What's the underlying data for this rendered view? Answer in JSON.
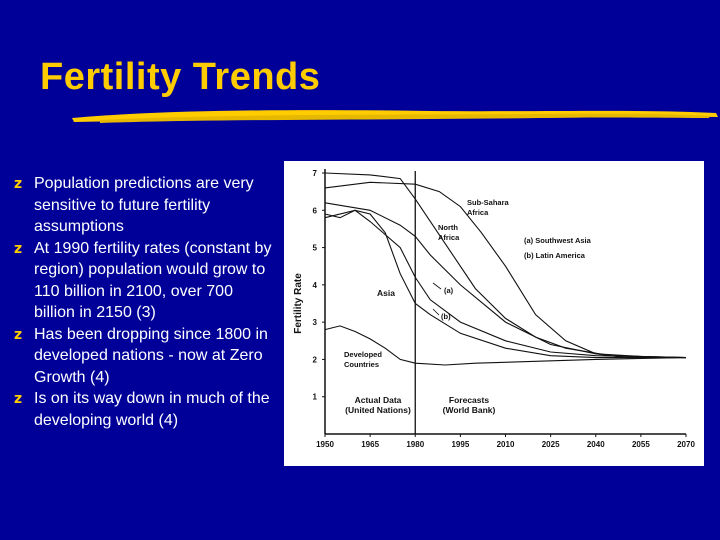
{
  "slide": {
    "title": "Fertility Trends",
    "bullets": [
      "Population predictions are very sensitive to future fertility assumptions",
      "At 1990 fertility rates (constant  by region) population would grow to 110 billion in 2100, over 700 billion in 2150 (3)",
      "Has been dropping since 1800 in developed nations - now at Zero Growth (4)",
      "Is on its way down in much of the developing world (4)"
    ],
    "bullet_icon": "z-bullet-icon",
    "colors": {
      "background": "#000099",
      "title": "#ffcc00",
      "text": "#ffffff",
      "underline": "#ffcc00"
    }
  },
  "chart_data": {
    "type": "line",
    "ylabel": "Fertility Rate",
    "xlabel": "",
    "xlim": [
      1950,
      2070
    ],
    "ylim": [
      0,
      7
    ],
    "x_ticks": [
      "1950",
      "1965",
      "1980",
      "1995",
      "2010",
      "2025",
      "2040",
      "2055",
      "2070"
    ],
    "y_ticks": [
      "1",
      "2",
      "3",
      "4",
      "5",
      "6",
      "7"
    ],
    "divider_year": 1980,
    "series": [
      {
        "name": "Sub-Sahara Africa",
        "x": [
          1950,
          1965,
          1980,
          1988,
          1995,
          2002,
          2010,
          2020,
          2030,
          2040,
          2050,
          2070
        ],
        "y": [
          6.6,
          6.75,
          6.7,
          6.5,
          6.1,
          5.4,
          4.5,
          3.2,
          2.5,
          2.15,
          2.05,
          2.05
        ]
      },
      {
        "name": "North Africa",
        "x": [
          1950,
          1965,
          1975,
          1980,
          1990,
          2000,
          2010,
          2020,
          2030,
          2045,
          2070
        ],
        "y": [
          7.0,
          6.95,
          6.85,
          6.3,
          5.1,
          3.9,
          3.1,
          2.6,
          2.3,
          2.1,
          2.05
        ]
      },
      {
        "name": "(a) Southwest Asia",
        "x": [
          1950,
          1965,
          1975,
          1980,
          1985,
          1995,
          2010,
          2025,
          2040,
          2055,
          2070
        ],
        "y": [
          6.2,
          6.0,
          5.6,
          5.3,
          4.8,
          4.0,
          3.0,
          2.4,
          2.15,
          2.08,
          2.05
        ]
      },
      {
        "name": "(b) Latin America",
        "x": [
          1950,
          1955,
          1960,
          1965,
          1975,
          1980,
          1985,
          1995,
          2010,
          2025,
          2040,
          2070
        ],
        "y": [
          5.9,
          5.8,
          6.0,
          5.7,
          5.0,
          4.2,
          3.6,
          3.0,
          2.5,
          2.2,
          2.1,
          2.05
        ]
      },
      {
        "name": "Asia",
        "x": [
          1950,
          1960,
          1965,
          1970,
          1975,
          1980,
          1985,
          1995,
          2010,
          2025,
          2040,
          2070
        ],
        "y": [
          5.8,
          6.0,
          5.9,
          5.4,
          4.3,
          3.5,
          3.2,
          2.7,
          2.3,
          2.1,
          2.05,
          2.05
        ]
      },
      {
        "name": "Developed Countries",
        "x": [
          1950,
          1955,
          1960,
          1965,
          1970,
          1975,
          1980,
          1990,
          2000,
          2020,
          2040,
          2070
        ],
        "y": [
          2.8,
          2.9,
          2.75,
          2.55,
          2.3,
          2.0,
          1.9,
          1.85,
          1.9,
          1.95,
          2.0,
          2.05
        ]
      }
    ],
    "annotations": {
      "sub_sahara": "Sub-Sahara\nAfrica",
      "north_africa": "North\nAfrica",
      "southwest_asia": "(a) Southwest Asia",
      "latin_america": "(b) Latin America",
      "asia": "Asia",
      "marker_a": "(a)",
      "marker_b": "(b)",
      "developed": "Developed\nCountries",
      "actual": "Actual Data\n(United Nations)",
      "forecasts": "Forecasts\n(World Bank)"
    }
  }
}
